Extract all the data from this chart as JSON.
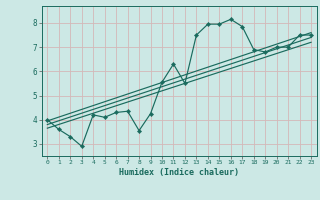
{
  "title": "",
  "xlabel": "Humidex (Indice chaleur)",
  "ylabel": "",
  "bg_color": "#cce8e5",
  "grid_color": "#d4b8b8",
  "line_color": "#1a6b5e",
  "marker_color": "#1a6b5e",
  "xlim": [
    -0.5,
    23.5
  ],
  "ylim": [
    2.5,
    8.7
  ],
  "xticks": [
    0,
    1,
    2,
    3,
    4,
    5,
    6,
    7,
    8,
    9,
    10,
    11,
    12,
    13,
    14,
    15,
    16,
    17,
    18,
    19,
    20,
    21,
    22,
    23
  ],
  "yticks": [
    3,
    4,
    5,
    6,
    7,
    8
  ],
  "curve_x": [
    0,
    1,
    2,
    3,
    4,
    5,
    6,
    7,
    8,
    9,
    10,
    11,
    12,
    13,
    14,
    15,
    16,
    17,
    18,
    19,
    20,
    21,
    22,
    23
  ],
  "curve_y": [
    4.0,
    3.6,
    3.3,
    2.9,
    4.2,
    4.1,
    4.3,
    4.35,
    3.55,
    4.25,
    5.55,
    6.3,
    5.5,
    7.5,
    7.95,
    7.95,
    8.15,
    7.85,
    6.9,
    6.8,
    7.0,
    7.0,
    7.5,
    7.5
  ],
  "line1_x": [
    0,
    23
  ],
  "line1_y": [
    3.95,
    7.6
  ],
  "line2_x": [
    0,
    23
  ],
  "line2_y": [
    3.8,
    7.4
  ],
  "line3_x": [
    0,
    23
  ],
  "line3_y": [
    3.65,
    7.2
  ]
}
